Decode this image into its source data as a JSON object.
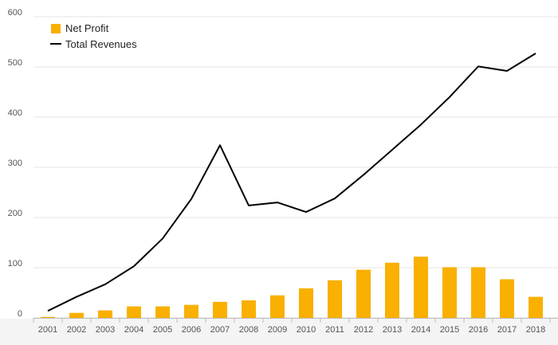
{
  "chart_data": {
    "type": "bar",
    "categories": [
      "2001",
      "2002",
      "2003",
      "2004",
      "2005",
      "2006",
      "2007",
      "2008",
      "2009",
      "2010",
      "2011",
      "2012",
      "2013",
      "2014",
      "2015",
      "2016",
      "2017",
      "2018"
    ],
    "series": [
      {
        "name": "Net Profit",
        "kind": "bar",
        "color": "#f9b000",
        "values": [
          2,
          10,
          15,
          23,
          23,
          26,
          32,
          35,
          45,
          59,
          75,
          96,
          110,
          122,
          101,
          101,
          77,
          42
        ]
      },
      {
        "name": "Total Revenues",
        "kind": "line",
        "color": "#000000",
        "values": [
          14,
          42,
          67,
          103,
          158,
          237,
          344,
          224,
          230,
          211,
          238,
          285,
          335,
          385,
          440,
          501,
          492,
          527
        ]
      }
    ],
    "yticks": [
      "0",
      "100",
      "200",
      "300",
      "400",
      "500",
      "600"
    ],
    "ylim": [
      0,
      600
    ],
    "grid": true,
    "legend_position": "top-left",
    "title": "",
    "xlabel": "",
    "ylabel": ""
  }
}
